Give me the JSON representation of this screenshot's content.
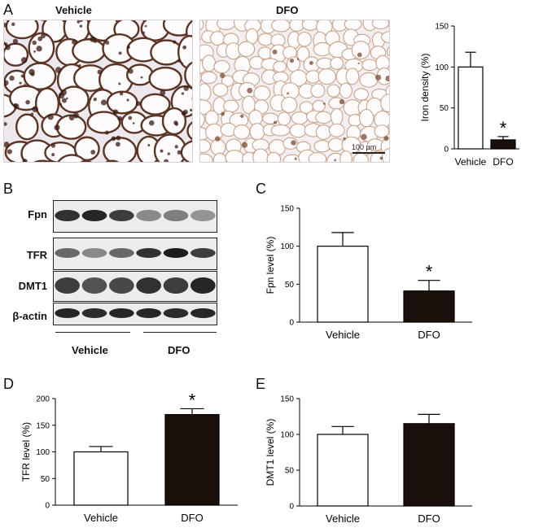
{
  "panels": {
    "A": "A",
    "B": "B",
    "C": "C",
    "D": "D",
    "E": "E"
  },
  "images": {
    "vehicle_label": "Vehicle",
    "dfo_label": "DFO",
    "scale_bar": "100 μm"
  },
  "blot": {
    "rows": [
      "Fpn",
      "TFR",
      "DMT1",
      "β-actin"
    ],
    "groups": [
      "Vehicle",
      "DFO"
    ]
  },
  "chart_data": [
    {
      "id": "iron",
      "type": "bar",
      "categories": [
        "Vehicle",
        "DFO"
      ],
      "values": [
        100,
        11
      ],
      "errors": [
        18,
        4
      ],
      "significant": [
        false,
        true
      ],
      "ylabel": "Iron density (%)",
      "ylim": [
        0,
        150
      ],
      "yticks": [
        0,
        50,
        100,
        150
      ],
      "bar_colors": [
        "#ffffff",
        "#1a0f0a"
      ],
      "sig_marker": "*"
    },
    {
      "id": "fpn",
      "type": "bar",
      "categories": [
        "Vehicle",
        "DFO"
      ],
      "values": [
        100,
        41
      ],
      "errors": [
        18,
        14
      ],
      "significant": [
        false,
        true
      ],
      "ylabel": "Fpn level (%)",
      "ylim": [
        0,
        150
      ],
      "yticks": [
        0,
        50,
        100,
        150
      ],
      "bar_colors": [
        "#ffffff",
        "#1a0f0a"
      ],
      "sig_marker": "*"
    },
    {
      "id": "tfr",
      "type": "bar",
      "categories": [
        "Vehicle",
        "DFO"
      ],
      "values": [
        100,
        170
      ],
      "errors": [
        10,
        11
      ],
      "significant": [
        false,
        true
      ],
      "ylabel": "TFR level (%)",
      "ylim": [
        0,
        200
      ],
      "yticks": [
        0,
        50,
        100,
        150,
        200
      ],
      "bar_colors": [
        "#ffffff",
        "#1a0f0a"
      ],
      "sig_marker": "*"
    },
    {
      "id": "dmt1",
      "type": "bar",
      "categories": [
        "Vehicle",
        "DFO"
      ],
      "values": [
        100,
        115
      ],
      "errors": [
        11,
        13
      ],
      "significant": [
        false,
        false
      ],
      "ylabel": "DMT1 level (%)",
      "ylim": [
        0,
        150
      ],
      "yticks": [
        0,
        50,
        100,
        150
      ],
      "bar_colors": [
        "#ffffff",
        "#1a0f0a"
      ],
      "sig_marker": "*"
    }
  ]
}
